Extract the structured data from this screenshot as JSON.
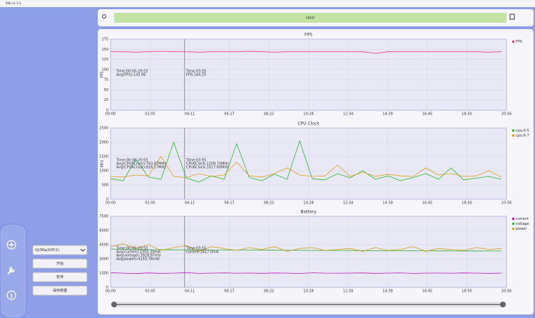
{
  "ui": {
    "window_title": "Blib-v1.3.3",
    "top_label": "label",
    "device": "VJ(SNa)DIP(1)",
    "buttons": [
      "开始",
      "暂停",
      "保存数据"
    ]
  },
  "chart_data": [
    {
      "type": "line",
      "title": "FPS",
      "ylabel": "FPS",
      "xlim": [
        0,
        1256
      ],
      "xticks": [
        {
          "value": 0,
          "label": "00:00"
        },
        {
          "value": 125.6,
          "label": "02:05"
        },
        {
          "value": 251.2,
          "label": "04:11"
        },
        {
          "value": 376.8,
          "label": "06:17"
        },
        {
          "value": 502.4,
          "label": "08:22"
        },
        {
          "value": 628,
          "label": "10:28"
        },
        {
          "value": 753.6,
          "label": "12:34"
        },
        {
          "value": 879.2,
          "label": "14:39"
        },
        {
          "value": 1004.8,
          "label": "16:45"
        },
        {
          "value": 1130.4,
          "label": "18:50"
        },
        {
          "value": 1256,
          "label": "20:56"
        }
      ],
      "ylim": [
        0,
        175
      ],
      "yticks": [
        0,
        25,
        50,
        75,
        100,
        125,
        150,
        175
      ],
      "grid": true,
      "x": [
        0,
        40,
        80,
        120,
        160,
        200,
        240,
        280,
        320,
        360,
        400,
        440,
        480,
        520,
        560,
        600,
        640,
        680,
        720,
        760,
        800,
        840,
        880,
        920,
        960,
        1000,
        1040,
        1080,
        1120,
        1160,
        1200,
        1240
      ],
      "series": [
        {
          "name": "FPS",
          "color": "#e8407a",
          "values": [
            144,
            144,
            143,
            144,
            145,
            144,
            144,
            143,
            144,
            144,
            144,
            145,
            144,
            143,
            144,
            144,
            144,
            144,
            144,
            144,
            144,
            140,
            144,
            144,
            144,
            144,
            144,
            144,
            144,
            144,
            143,
            144
          ]
        }
      ],
      "cursor_x": 235,
      "summary": [
        "Time:00:00-20:55",
        "Avg(FPS):143.96"
      ],
      "cursor_text": [
        "Time:03:55",
        "FPS:144.25"
      ]
    },
    {
      "type": "line",
      "title": "CPU Clock",
      "ylabel": "MHz",
      "xlim": [
        0,
        1256
      ],
      "xticks": [
        {
          "value": 0,
          "label": "00:00"
        },
        {
          "value": 125.6,
          "label": "02:05"
        },
        {
          "value": 251.2,
          "label": "04:11"
        },
        {
          "value": 376.8,
          "label": "06:17"
        },
        {
          "value": 502.4,
          "label": "08:22"
        },
        {
          "value": 628,
          "label": "10:28"
        },
        {
          "value": 753.6,
          "label": "12:34"
        },
        {
          "value": 879.2,
          "label": "14:39"
        },
        {
          "value": 1004.8,
          "label": "16:45"
        },
        {
          "value": 1130.4,
          "label": "18:50"
        },
        {
          "value": 1256,
          "label": "20:56"
        }
      ],
      "ylim": [
        0,
        2500
      ],
      "yticks": [
        0,
        500,
        1000,
        1500,
        2000,
        2500
      ],
      "grid": true,
      "x": [
        0,
        40,
        80,
        120,
        160,
        200,
        240,
        280,
        320,
        360,
        400,
        440,
        480,
        520,
        560,
        600,
        640,
        680,
        720,
        760,
        800,
        840,
        880,
        920,
        960,
        1000,
        1040,
        1080,
        1120,
        1160,
        1200,
        1240
      ],
      "series": [
        {
          "name": "cpu:0-5",
          "color": "#2db82d",
          "values": [
            720,
            650,
            1400,
            780,
            700,
            2000,
            750,
            600,
            820,
            700,
            1950,
            760,
            650,
            880,
            700,
            2050,
            720,
            680,
            900,
            750,
            1000,
            700,
            820,
            650,
            760,
            900,
            700,
            1100,
            680,
            740,
            800,
            700
          ]
        },
        {
          "name": "cpu:6-7",
          "color": "#e0a020",
          "values": [
            800,
            780,
            850,
            820,
            1500,
            800,
            760,
            900,
            800,
            850,
            1300,
            820,
            780,
            900,
            1100,
            850,
            800,
            820,
            1200,
            800,
            950,
            800,
            880,
            820,
            800,
            1100,
            850,
            900,
            800,
            820,
            1000,
            780
          ]
        }
      ],
      "cursor_x": 235,
      "summary": [
        "Time:00:00-20:55",
        "Avg(CPU0Clock):763.87MHz",
        "Avg(CPU6Clock):816.17MHz"
      ],
      "cursor_text": [
        "Time:03:55",
        "CPU0Clock:1209.70MHz",
        "CPU6Clock:1017.60MHz"
      ]
    },
    {
      "type": "line",
      "title": "Battery",
      "ylabel": "",
      "xlim": [
        0,
        1256
      ],
      "xticks": [
        {
          "value": 0,
          "label": "00:00"
        },
        {
          "value": 125.6,
          "label": "02:05"
        },
        {
          "value": 251.2,
          "label": "04:11"
        },
        {
          "value": 376.8,
          "label": "06:17"
        },
        {
          "value": 502.4,
          "label": "08:22"
        },
        {
          "value": 628,
          "label": "10:28"
        },
        {
          "value": 753.6,
          "label": "12:34"
        },
        {
          "value": 879.2,
          "label": "14:39"
        },
        {
          "value": 1004.8,
          "label": "16:45"
        },
        {
          "value": 1130.4,
          "label": "18:50"
        },
        {
          "value": 1256,
          "label": "20:56"
        }
      ],
      "ylim": [
        0,
        7500
      ],
      "yticks": [
        0,
        1500,
        3000,
        4500,
        6000,
        7500
      ],
      "grid": true,
      "x": [
        0,
        40,
        80,
        120,
        160,
        200,
        240,
        280,
        320,
        360,
        400,
        440,
        480,
        520,
        560,
        600,
        640,
        680,
        720,
        760,
        800,
        840,
        880,
        920,
        960,
        1000,
        1040,
        1080,
        1120,
        1160,
        1200,
        1240
      ],
      "series": [
        {
          "name": "current",
          "color": "#c020c0",
          "values": [
            1550,
            1500,
            1450,
            1520,
            1480,
            1500,
            1560,
            1470,
            1500,
            1530,
            1490,
            1510,
            1480,
            1520,
            1500,
            1460,
            1540,
            1500,
            1490,
            1510,
            1520,
            1480,
            1500,
            1530,
            1470,
            1500,
            1510,
            1490,
            1520,
            1500,
            1480,
            1500
          ]
        },
        {
          "name": "voltage",
          "color": "#30b030",
          "values": [
            4050,
            4000,
            3980,
            3970,
            3960,
            3960,
            3950,
            3950,
            3940,
            3940,
            3930,
            3930,
            3920,
            3920,
            3910,
            3910,
            3900,
            3900,
            3890,
            3890,
            3880,
            3880,
            3870,
            3870,
            3860,
            3860,
            3850,
            3850,
            3840,
            3840,
            3830,
            3830
          ]
        },
        {
          "name": "power",
          "color": "#d4a020",
          "values": [
            4300,
            4600,
            4100,
            4500,
            3900,
            4200,
            4400,
            3800,
            4300,
            4100,
            3900,
            4200,
            4000,
            4300,
            3800,
            4100,
            4200,
            3900,
            4000,
            4100,
            3800,
            4200,
            3900,
            4000,
            4300,
            3800,
            4100,
            4000,
            3900,
            4200,
            4000,
            4100
          ]
        }
      ],
      "cursor_x": 235,
      "summary": [
        "Time:00:00-20:55",
        "Avg(current):1502.20mA",
        "Avg(voltage):3928.87mV",
        "Avg(power):4193.78mW"
      ],
      "cursor_text": [
        "Time:03:55",
        "current:1617.0mA"
      ]
    }
  ]
}
